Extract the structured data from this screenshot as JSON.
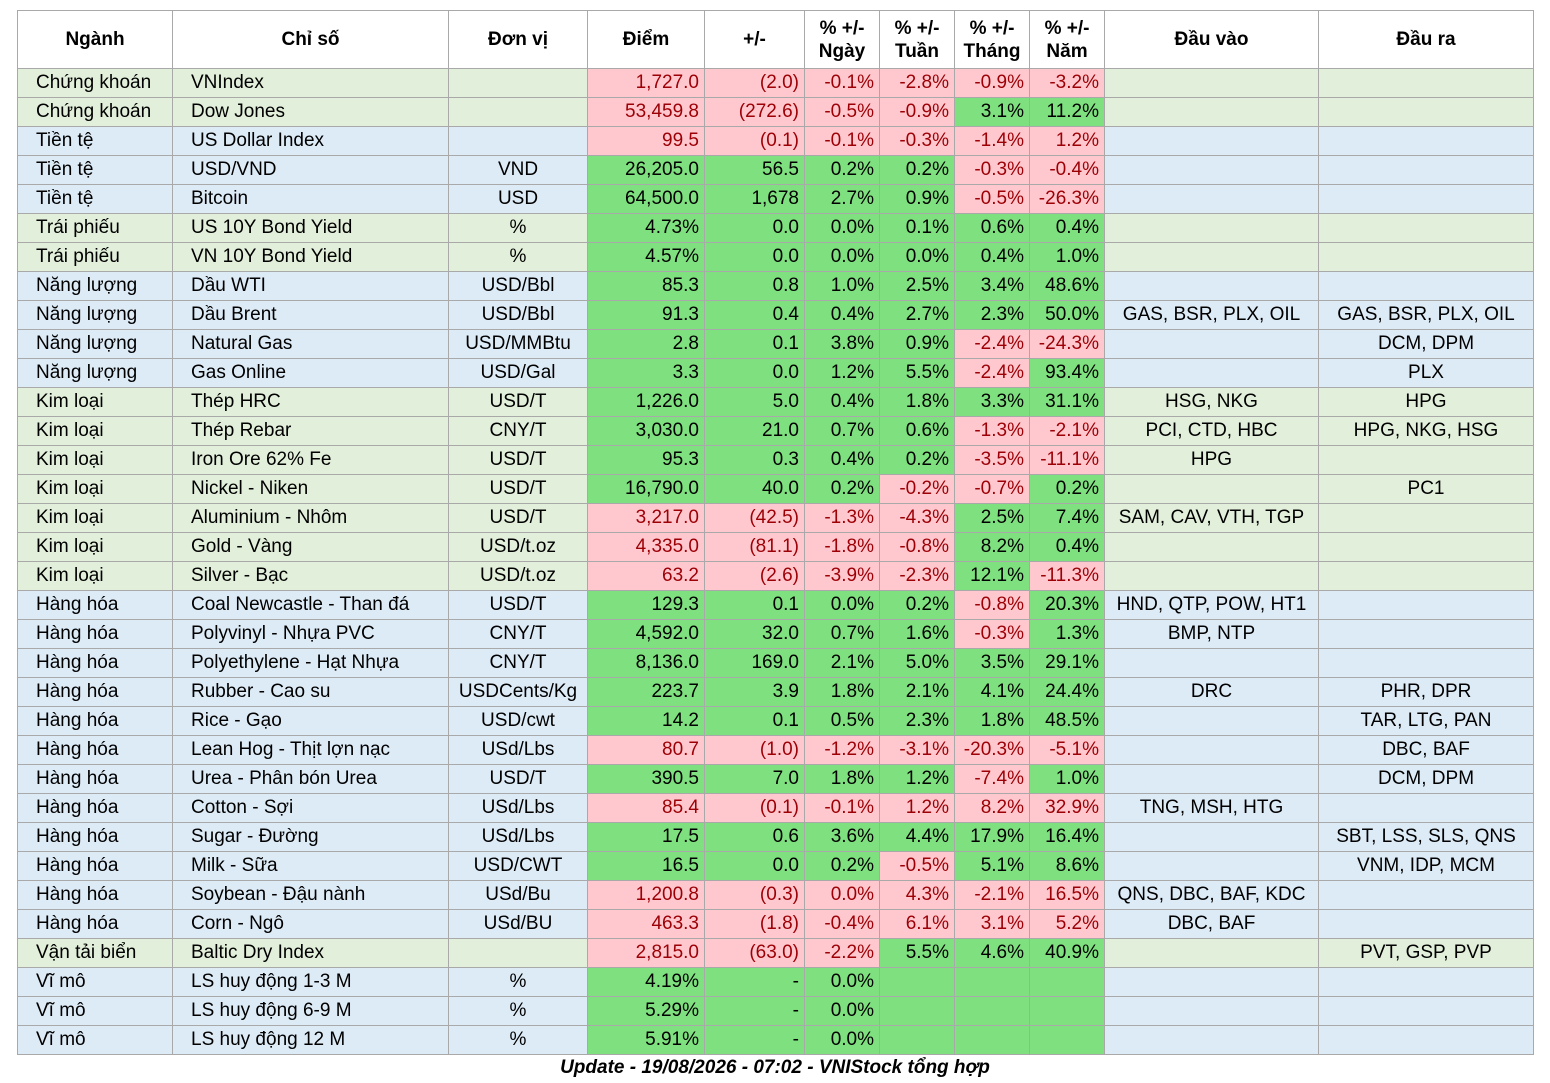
{
  "headers": [
    "Ngành",
    "Chỉ số",
    "Đơn vị",
    "Điểm",
    "+/-",
    "% +/-\nNgày",
    "% +/-\nTuần",
    "% +/-\nTháng",
    "% +/-\nNăm",
    "Đầu vào",
    "Đầu ra"
  ],
  "colors": {
    "green_row": "#e2efda",
    "blue_row": "#ddebf7",
    "pos": "#7ee07e",
    "neg": "#ffc8ce",
    "neg_text": "#9c0006"
  },
  "rows": [
    {
      "sector": "Chứng khoán",
      "index": "VNIndex",
      "unit": "",
      "point": "1,727.0",
      "change": "(2.0)",
      "day": "-0.1%",
      "week": "-2.8%",
      "month": "-0.9%",
      "year": "-3.2%",
      "in": "",
      "out": "",
      "bg": "green",
      "s": [
        "neg",
        "neg",
        "neg",
        "neg",
        "neg",
        "neg"
      ]
    },
    {
      "sector": "Chứng khoán",
      "index": "Dow Jones",
      "unit": "",
      "point": "53,459.8",
      "change": "(272.6)",
      "day": "-0.5%",
      "week": "-0.9%",
      "month": "3.1%",
      "year": "11.2%",
      "in": "",
      "out": "",
      "bg": "green",
      "s": [
        "neg",
        "neg",
        "neg",
        "neg",
        "pos",
        "pos"
      ]
    },
    {
      "sector": "Tiền tệ",
      "index": "US Dollar Index",
      "unit": "",
      "point": "99.5",
      "change": "(0.1)",
      "day": "-0.1%",
      "week": "-0.3%",
      "month": "-1.4%",
      "year": "1.2%",
      "in": "",
      "out": "",
      "bg": "blue",
      "s": [
        "neg",
        "neg",
        "neg",
        "neg",
        "neg",
        "neg"
      ]
    },
    {
      "sector": "Tiền tệ",
      "index": "USD/VND",
      "unit": "VND",
      "point": "26,205.0",
      "change": "56.5",
      "day": "0.2%",
      "week": "0.2%",
      "month": "-0.3%",
      "year": "-0.4%",
      "in": "",
      "out": "",
      "bg": "blue",
      "s": [
        "pos",
        "pos",
        "pos",
        "pos",
        "neg",
        "neg"
      ]
    },
    {
      "sector": "Tiền tệ",
      "index": "Bitcoin",
      "unit": "USD",
      "point": "64,500.0",
      "change": "1,678",
      "day": "2.7%",
      "week": "0.9%",
      "month": "-0.5%",
      "year": "-26.3%",
      "in": "",
      "out": "",
      "bg": "blue",
      "s": [
        "pos",
        "pos",
        "pos",
        "pos",
        "neg",
        "neg"
      ]
    },
    {
      "sector": "Trái phiếu",
      "index": "US 10Y Bond Yield",
      "unit": "%",
      "point": "4.73%",
      "change": "0.0",
      "day": "0.0%",
      "week": "0.1%",
      "month": "0.6%",
      "year": "0.4%",
      "in": "",
      "out": "",
      "bg": "green",
      "s": [
        "pos",
        "pos",
        "pos",
        "pos",
        "pos",
        "pos"
      ]
    },
    {
      "sector": "Trái phiếu",
      "index": "VN 10Y Bond Yield",
      "unit": "%",
      "point": "4.57%",
      "change": "0.0",
      "day": "0.0%",
      "week": "0.0%",
      "month": "0.4%",
      "year": "1.0%",
      "in": "",
      "out": "",
      "bg": "green",
      "s": [
        "pos",
        "pos",
        "pos",
        "pos",
        "pos",
        "pos"
      ]
    },
    {
      "sector": "Năng lượng",
      "index": "Dầu WTI",
      "unit": "USD/Bbl",
      "point": "85.3",
      "change": "0.8",
      "day": "1.0%",
      "week": "2.5%",
      "month": "3.4%",
      "year": "48.6%",
      "in": "",
      "out": "",
      "bg": "blue",
      "s": [
        "pos",
        "pos",
        "pos",
        "pos",
        "pos",
        "pos"
      ]
    },
    {
      "sector": "Năng lượng",
      "index": "Dầu Brent",
      "unit": "USD/Bbl",
      "point": "91.3",
      "change": "0.4",
      "day": "0.4%",
      "week": "2.7%",
      "month": "2.3%",
      "year": "50.0%",
      "in": "GAS, BSR, PLX, OIL",
      "out": "GAS, BSR, PLX, OIL",
      "bg": "blue",
      "s": [
        "pos",
        "pos",
        "pos",
        "pos",
        "pos",
        "pos"
      ]
    },
    {
      "sector": "Năng lượng",
      "index": "Natural Gas",
      "unit": "USD/MMBtu",
      "point": "2.8",
      "change": "0.1",
      "day": "3.8%",
      "week": "0.9%",
      "month": "-2.4%",
      "year": "-24.3%",
      "in": "",
      "out": "DCM, DPM",
      "bg": "blue",
      "s": [
        "pos",
        "pos",
        "pos",
        "pos",
        "neg",
        "neg"
      ]
    },
    {
      "sector": "Năng lượng",
      "index": "Gas Online",
      "unit": "USD/Gal",
      "point": "3.3",
      "change": "0.0",
      "day": "1.2%",
      "week": "5.5%",
      "month": "-2.4%",
      "year": "93.4%",
      "in": "",
      "out": "PLX",
      "bg": "blue",
      "s": [
        "pos",
        "pos",
        "pos",
        "pos",
        "neg",
        "pos"
      ]
    },
    {
      "sector": "Kim loại",
      "index": "Thép HRC",
      "unit": "USD/T",
      "point": "1,226.0",
      "change": "5.0",
      "day": "0.4%",
      "week": "1.8%",
      "month": "3.3%",
      "year": "31.1%",
      "in": "HSG, NKG",
      "out": "HPG",
      "bg": "green",
      "s": [
        "pos",
        "pos",
        "pos",
        "pos",
        "pos",
        "pos"
      ]
    },
    {
      "sector": "Kim loại",
      "index": "Thép Rebar",
      "unit": "CNY/T",
      "point": "3,030.0",
      "change": "21.0",
      "day": "0.7%",
      "week": "0.6%",
      "month": "-1.3%",
      "year": "-2.1%",
      "in": "PCI, CTD, HBC",
      "out": "HPG, NKG, HSG",
      "bg": "green",
      "s": [
        "pos",
        "pos",
        "pos",
        "pos",
        "neg",
        "neg"
      ]
    },
    {
      "sector": "Kim loại",
      "index": "Iron Ore 62% Fe",
      "unit": "USD/T",
      "point": "95.3",
      "change": "0.3",
      "day": "0.4%",
      "week": "0.2%",
      "month": "-3.5%",
      "year": "-11.1%",
      "in": "HPG",
      "out": "",
      "bg": "green",
      "s": [
        "pos",
        "pos",
        "pos",
        "pos",
        "neg",
        "neg"
      ]
    },
    {
      "sector": "Kim loại",
      "index": "Nickel - Niken",
      "unit": "USD/T",
      "point": "16,790.0",
      "change": "40.0",
      "day": "0.2%",
      "week": "-0.2%",
      "month": "-0.7%",
      "year": "0.2%",
      "in": "",
      "out": "PC1",
      "bg": "green",
      "s": [
        "pos",
        "pos",
        "pos",
        "neg",
        "neg",
        "pos"
      ]
    },
    {
      "sector": "Kim loại",
      "index": "Aluminium - Nhôm",
      "unit": "USD/T",
      "point": "3,217.0",
      "change": "(42.5)",
      "day": "-1.3%",
      "week": "-4.3%",
      "month": "2.5%",
      "year": "7.4%",
      "in": "SAM, CAV, VTH, TGP",
      "out": "",
      "bg": "green",
      "s": [
        "neg",
        "neg",
        "neg",
        "neg",
        "pos",
        "pos"
      ]
    },
    {
      "sector": "Kim loại",
      "index": "Gold - Vàng",
      "unit": "USD/t.oz",
      "point": "4,335.0",
      "change": "(81.1)",
      "day": "-1.8%",
      "week": "-0.8%",
      "month": "8.2%",
      "year": "0.4%",
      "in": "",
      "out": "",
      "bg": "green",
      "s": [
        "neg",
        "neg",
        "neg",
        "neg",
        "pos",
        "pos"
      ]
    },
    {
      "sector": "Kim loại",
      "index": "Silver - Bạc",
      "unit": "USD/t.oz",
      "point": "63.2",
      "change": "(2.6)",
      "day": "-3.9%",
      "week": "-2.3%",
      "month": "12.1%",
      "year": "-11.3%",
      "in": "",
      "out": "",
      "bg": "green",
      "s": [
        "neg",
        "neg",
        "neg",
        "neg",
        "pos",
        "neg"
      ]
    },
    {
      "sector": "Hàng hóa",
      "index": "Coal Newcastle - Than đá",
      "unit": "USD/T",
      "point": "129.3",
      "change": "0.1",
      "day": "0.0%",
      "week": "0.2%",
      "month": "-0.8%",
      "year": "20.3%",
      "in": "HND, QTP, POW, HT1",
      "out": "",
      "bg": "blue",
      "s": [
        "pos",
        "pos",
        "pos",
        "pos",
        "neg",
        "pos"
      ]
    },
    {
      "sector": "Hàng hóa",
      "index": "Polyvinyl - Nhựa PVC",
      "unit": "CNY/T",
      "point": "4,592.0",
      "change": "32.0",
      "day": "0.7%",
      "week": "1.6%",
      "month": "-0.3%",
      "year": "1.3%",
      "in": "BMP, NTP",
      "out": "",
      "bg": "blue",
      "s": [
        "pos",
        "pos",
        "pos",
        "pos",
        "neg",
        "pos"
      ]
    },
    {
      "sector": "Hàng hóa",
      "index": "Polyethylene - Hạt Nhựa",
      "unit": "CNY/T",
      "point": "8,136.0",
      "change": "169.0",
      "day": "2.1%",
      "week": "5.0%",
      "month": "3.5%",
      "year": "29.1%",
      "in": "",
      "out": "",
      "bg": "blue",
      "s": [
        "pos",
        "pos",
        "pos",
        "pos",
        "pos",
        "pos"
      ]
    },
    {
      "sector": "Hàng hóa",
      "index": "Rubber - Cao su",
      "unit": "USDCents/Kg",
      "point": "223.7",
      "change": "3.9",
      "day": "1.8%",
      "week": "2.1%",
      "month": "4.1%",
      "year": "24.4%",
      "in": "DRC",
      "out": "PHR, DPR",
      "bg": "blue",
      "s": [
        "pos",
        "pos",
        "pos",
        "pos",
        "pos",
        "pos"
      ]
    },
    {
      "sector": "Hàng hóa",
      "index": "Rice - Gạo",
      "unit": "USD/cwt",
      "point": "14.2",
      "change": "0.1",
      "day": "0.5%",
      "week": "2.3%",
      "month": "1.8%",
      "year": "48.5%",
      "in": "",
      "out": "TAR, LTG, PAN",
      "bg": "blue",
      "s": [
        "pos",
        "pos",
        "pos",
        "pos",
        "pos",
        "pos"
      ]
    },
    {
      "sector": "Hàng hóa",
      "index": "Lean Hog - Thịt lợn nạc",
      "unit": "USd/Lbs",
      "point": "80.7",
      "change": "(1.0)",
      "day": "-1.2%",
      "week": "-3.1%",
      "month": "-20.3%",
      "year": "-5.1%",
      "in": "",
      "out": "DBC, BAF",
      "bg": "blue",
      "s": [
        "neg",
        "neg",
        "neg",
        "neg",
        "neg",
        "neg"
      ]
    },
    {
      "sector": "Hàng hóa",
      "index": "Urea - Phân bón Urea",
      "unit": "USD/T",
      "point": "390.5",
      "change": "7.0",
      "day": "1.8%",
      "week": "1.2%",
      "month": "-7.4%",
      "year": "1.0%",
      "in": "",
      "out": "DCM, DPM",
      "bg": "blue",
      "s": [
        "pos",
        "pos",
        "pos",
        "pos",
        "neg",
        "pos"
      ]
    },
    {
      "sector": "Hàng hóa",
      "index": "Cotton - Sợi",
      "unit": "USd/Lbs",
      "point": "85.4",
      "change": "(0.1)",
      "day": "-0.1%",
      "week": "1.2%",
      "month": "8.2%",
      "year": "32.9%",
      "in": "TNG, MSH, HTG",
      "out": "",
      "bg": "blue",
      "s": [
        "neg",
        "neg",
        "neg",
        "neg",
        "neg",
        "neg"
      ]
    },
    {
      "sector": "Hàng hóa",
      "index": "Sugar - Đường",
      "unit": "USd/Lbs",
      "point": "17.5",
      "change": "0.6",
      "day": "3.6%",
      "week": "4.4%",
      "month": "17.9%",
      "year": "16.4%",
      "in": "",
      "out": "SBT, LSS, SLS, QNS",
      "bg": "blue",
      "s": [
        "pos",
        "pos",
        "pos",
        "pos",
        "pos",
        "pos"
      ]
    },
    {
      "sector": "Hàng hóa",
      "index": "Milk - Sữa",
      "unit": "USD/CWT",
      "point": "16.5",
      "change": "0.0",
      "day": "0.2%",
      "week": "-0.5%",
      "month": "5.1%",
      "year": "8.6%",
      "in": "",
      "out": "VNM, IDP, MCM",
      "bg": "blue",
      "s": [
        "pos",
        "pos",
        "pos",
        "neg",
        "pos",
        "pos"
      ]
    },
    {
      "sector": "Hàng hóa",
      "index": "Soybean - Đậu nành",
      "unit": "USd/Bu",
      "point": "1,200.8",
      "change": "(0.3)",
      "day": "0.0%",
      "week": "4.3%",
      "month": "-2.1%",
      "year": "16.5%",
      "in": "QNS, DBC, BAF, KDC",
      "out": "",
      "bg": "blue",
      "s": [
        "neg",
        "neg",
        "neg",
        "neg",
        "neg",
        "neg"
      ]
    },
    {
      "sector": "Hàng hóa",
      "index": "Corn - Ngô",
      "unit": "USd/BU",
      "point": "463.3",
      "change": "(1.8)",
      "day": "-0.4%",
      "week": "6.1%",
      "month": "3.1%",
      "year": "5.2%",
      "in": "DBC, BAF",
      "out": "",
      "bg": "blue",
      "s": [
        "neg",
        "neg",
        "neg",
        "neg",
        "neg",
        "neg"
      ]
    },
    {
      "sector": "Vận tải biển",
      "index": "Baltic Dry Index",
      "unit": "",
      "point": "2,815.0",
      "change": "(63.0)",
      "day": "-2.2%",
      "week": "5.5%",
      "month": "4.6%",
      "year": "40.9%",
      "in": "",
      "out": "PVT, GSP, PVP",
      "bg": "green",
      "s": [
        "neg",
        "neg",
        "neg",
        "pos",
        "pos",
        "pos"
      ]
    },
    {
      "sector": "Vĩ mô",
      "index": "LS huy động 1-3 M",
      "unit": "%",
      "point": "4.19%",
      "change": "-",
      "day": "0.0%",
      "week": "",
      "month": "",
      "year": "",
      "in": "",
      "out": "",
      "bg": "blue",
      "s": [
        "pos",
        "pos",
        "pos",
        "pos",
        "pos",
        "pos"
      ]
    },
    {
      "sector": "Vĩ mô",
      "index": "LS huy động 6-9 M",
      "unit": "%",
      "point": "5.29%",
      "change": "-",
      "day": "0.0%",
      "week": "",
      "month": "",
      "year": "",
      "in": "",
      "out": "",
      "bg": "blue",
      "s": [
        "pos",
        "pos",
        "pos",
        "pos",
        "pos",
        "pos"
      ]
    },
    {
      "sector": "Vĩ mô",
      "index": "LS huy động 12 M",
      "unit": "%",
      "point": "5.91%",
      "change": "-",
      "day": "0.0%",
      "week": "",
      "month": "",
      "year": "",
      "in": "",
      "out": "",
      "bg": "blue",
      "s": [
        "pos",
        "pos",
        "pos",
        "pos",
        "pos",
        "pos"
      ]
    }
  ],
  "footer": "Update - 19/08/2026 - 07:02 - VNIStock tổng hợp"
}
